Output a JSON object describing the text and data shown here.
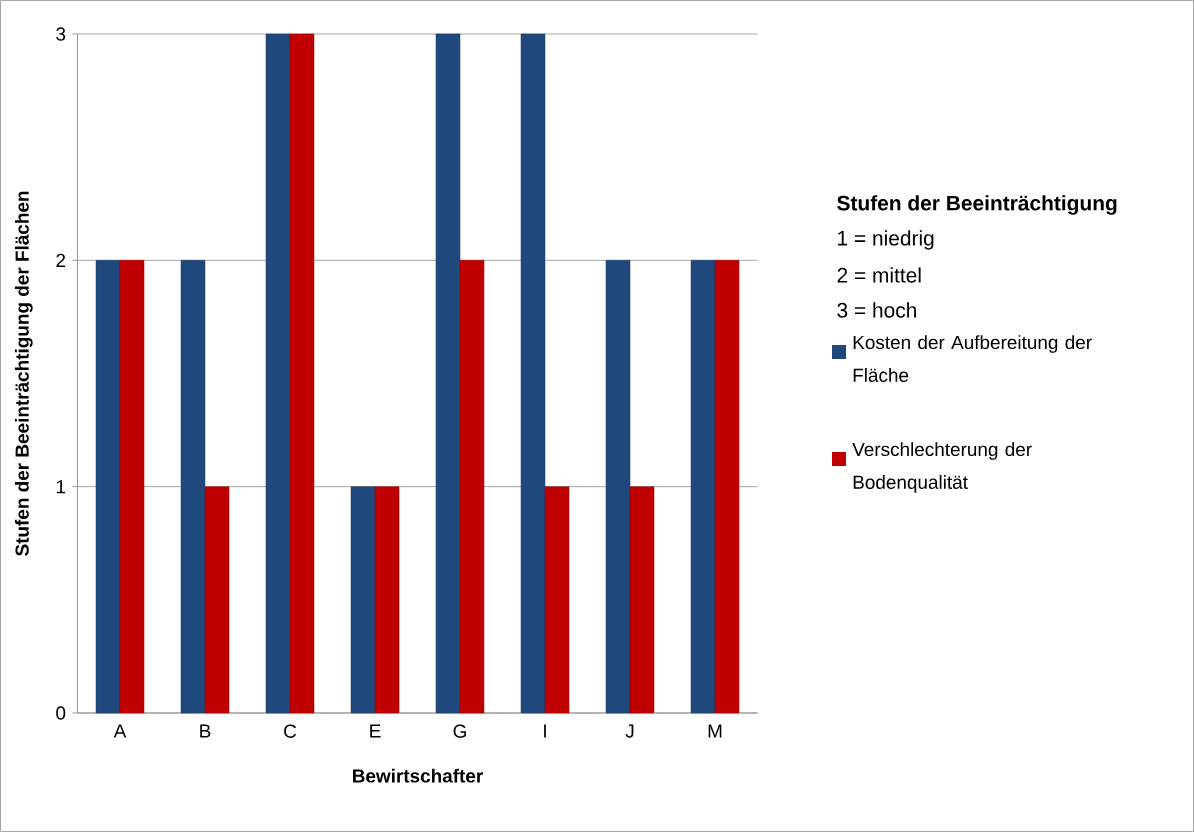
{
  "chart_data": {
    "type": "bar",
    "xlabel": "Bewirtschafter",
    "ylabel": "Stufen der Beeinträchtigung der Flächen",
    "legend_title": "Stufen der Beeinträchtigung",
    "annotations": [
      "1 = niedrig",
      "2 = mittel",
      "3 = hoch"
    ],
    "categories": [
      "A",
      "B",
      "C",
      "E",
      "G",
      "I",
      "J",
      "M"
    ],
    "series": [
      {
        "name": "Kosten der Aufbereitung der Fläche",
        "color": "#1f497d",
        "values": [
          2,
          2,
          3,
          1,
          3,
          3,
          2,
          2
        ]
      },
      {
        "name": "Verschlechterung der Bodenqualität",
        "color": "#c00000",
        "values": [
          2,
          1,
          3,
          1,
          2,
          1,
          1,
          2
        ]
      }
    ],
    "ylim": [
      0,
      3
    ],
    "yticks": [
      0,
      1,
      2,
      3
    ],
    "grid": "y",
    "legend": "right"
  }
}
